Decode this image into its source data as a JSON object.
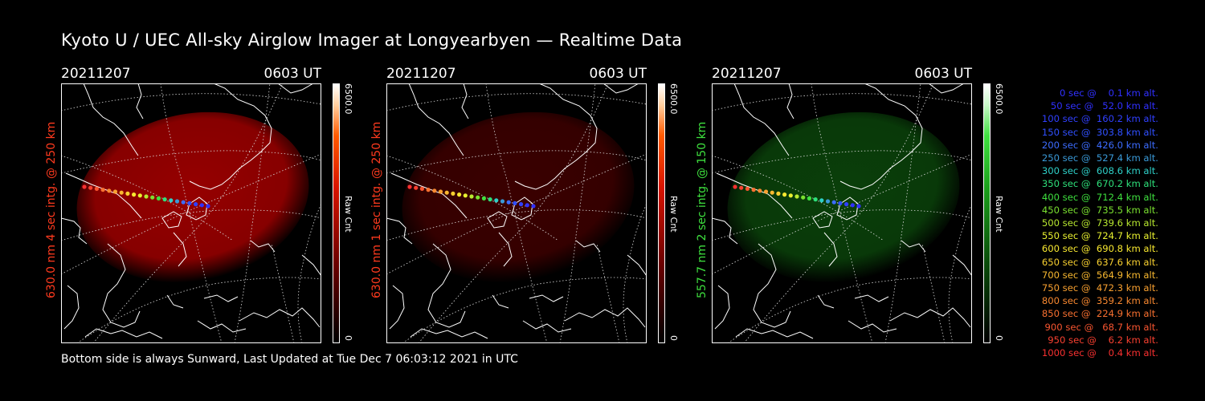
{
  "title": "Kyoto U / UEC All-sky Airglow Imager at Longyearbyen — Realtime Data",
  "footer": "Bottom side is always Sunward, Last Updated at Tue Dec  7 06:03:12 2021 in UTC",
  "panels": [
    {
      "date": "20211207",
      "time": "0603 UT",
      "ylabel": "630.0 nm 4 sec intg. @ 250 km",
      "label_color": "#ff3a1e",
      "glow": "#c00000",
      "glow_opacity": 0.78,
      "cbar_max": "6500.0",
      "cbar_unit": "Raw Cnt",
      "cbar_min": "0",
      "cbar_color": "#ff3a00"
    },
    {
      "date": "20211207",
      "time": "0603 UT",
      "ylabel": "630.0 nm 1 sec intg. @ 250 km",
      "label_color": "#ff3a1e",
      "glow": "#6a0000",
      "glow_opacity": 0.55,
      "cbar_max": "6500.0",
      "cbar_unit": "Raw Cnt",
      "cbar_min": "0",
      "cbar_color": "#ff3a00"
    },
    {
      "date": "20211207",
      "time": "0603 UT",
      "ylabel": "557.7 nm 2 sec intg. @ 150 km",
      "label_color": "#3ee03e",
      "glow": "#0e5a0e",
      "glow_opacity": 0.7,
      "cbar_max": "6500.0",
      "cbar_unit": "Raw Cnt",
      "cbar_min": "0",
      "cbar_color": "#3ad03a"
    }
  ],
  "legend": [
    {
      "text": "   0 sec @    0.1 km alt.",
      "color": "#3030ff"
    },
    {
      "text": "  50 sec @   52.0 km alt.",
      "color": "#3030ff"
    },
    {
      "text": " 100 sec @  160.2 km alt.",
      "color": "#3040ff"
    },
    {
      "text": " 150 sec @  303.8 km alt.",
      "color": "#3050ff"
    },
    {
      "text": " 200 sec @  426.0 km alt.",
      "color": "#3c6cff"
    },
    {
      "text": " 250 sec @  527.4 km alt.",
      "color": "#3a9ad8"
    },
    {
      "text": " 300 sec @  608.6 km alt.",
      "color": "#2ed0c8"
    },
    {
      "text": " 350 sec @  670.2 km alt.",
      "color": "#2ee07a"
    },
    {
      "text": " 400 sec @  712.4 km alt.",
      "color": "#3ee03e"
    },
    {
      "text": " 450 sec @  735.5 km alt.",
      "color": "#7ae030"
    },
    {
      "text": " 500 sec @  739.6 km alt.",
      "color": "#b8e830"
    },
    {
      "text": " 550 sec @  724.7 km alt.",
      "color": "#e8f030"
    },
    {
      "text": " 600 sec @  690.8 km alt.",
      "color": "#f8e830"
    },
    {
      "text": " 650 sec @  637.6 km alt.",
      "color": "#f8d030"
    },
    {
      "text": " 700 sec @  564.9 km alt.",
      "color": "#f8b830"
    },
    {
      "text": " 750 sec @  472.3 km alt.",
      "color": "#f8a030"
    },
    {
      "text": " 800 sec @  359.2 km alt.",
      "color": "#f88830"
    },
    {
      "text": " 850 sec @  224.9 km alt.",
      "color": "#f87030"
    },
    {
      "text": " 900 sec @   68.7 km alt.",
      "color": "#f85530"
    },
    {
      "text": " 950 sec @    6.2 km alt.",
      "color": "#f84030"
    },
    {
      "text": "1000 sec @    0.4 km alt.",
      "color": "#f83030"
    }
  ]
}
